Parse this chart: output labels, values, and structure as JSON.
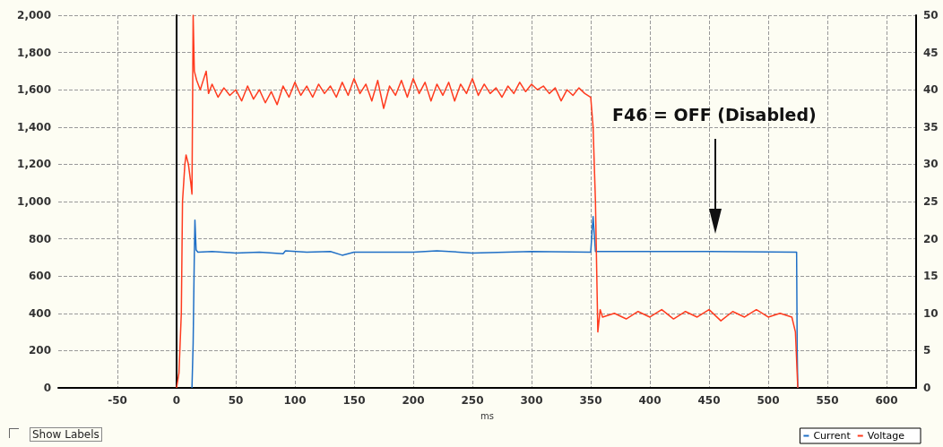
{
  "chart_data": {
    "type": "line",
    "xlabel": "ms",
    "xlim": [
      -100,
      625
    ],
    "xticks": [
      -50,
      0,
      50,
      100,
      150,
      200,
      250,
      300,
      350,
      400,
      450,
      500,
      550,
      600
    ],
    "ylim": [
      0,
      2000
    ],
    "yticks": [
      0,
      {
        "value": 200,
        "label": "200"
      },
      {
        "value": 400,
        "label": "400"
      },
      {
        "value": 600,
        "label": "600"
      },
      {
        "value": 800,
        "label": "800"
      },
      {
        "value": 1000,
        "label": "1,000"
      },
      {
        "value": 1200,
        "label": "1,200"
      },
      {
        "value": 1400,
        "label": "1,400"
      },
      {
        "value": 1600,
        "label": "1,600"
      },
      {
        "value": 1800,
        "label": "1,800"
      },
      {
        "value": 2000,
        "label": "2,000"
      }
    ],
    "y2lim": [
      0,
      50
    ],
    "y2ticks": [
      0,
      5,
      10,
      15,
      20,
      25,
      30,
      35,
      40,
      45,
      50
    ],
    "grid": true,
    "legend": "bottom right",
    "marker": "none",
    "line_style": "solid",
    "annotations": [
      "F46 = OFF (Disabled)",
      "Show Labels"
    ],
    "series": [
      {
        "name": "Current",
        "color": "#1f6fc6",
        "axis": "y2",
        "x": [
          13,
          14,
          15,
          15.5,
          16.5,
          18,
          30,
          50,
          70,
          90,
          92,
          110,
          130,
          140,
          150,
          200,
          220,
          250,
          300,
          350,
          352,
          354,
          360,
          450,
          524,
          524.5,
          525
        ],
        "values": [
          0,
          6,
          18,
          22.5,
          18.5,
          18.2,
          18.3,
          18.1,
          18.2,
          18.0,
          18.4,
          18.2,
          18.3,
          17.8,
          18.2,
          18.2,
          18.4,
          18.1,
          18.3,
          18.2,
          23,
          18.3,
          18.3,
          18.3,
          18.2,
          5,
          0
        ]
      },
      {
        "name": "Voltage",
        "color": "#ff3b1f",
        "x": [
          0,
          2,
          4,
          5,
          7,
          8,
          10,
          12,
          13,
          14,
          15,
          17,
          20,
          22,
          25,
          27,
          30,
          35,
          40,
          45,
          50,
          55,
          60,
          65,
          70,
          75,
          80,
          85,
          90,
          95,
          100,
          105,
          110,
          115,
          120,
          125,
          130,
          135,
          140,
          145,
          150,
          155,
          160,
          165,
          170,
          175,
          180,
          185,
          190,
          195,
          200,
          205,
          210,
          215,
          220,
          225,
          230,
          235,
          240,
          245,
          250,
          255,
          260,
          265,
          270,
          275,
          280,
          285,
          290,
          295,
          300,
          305,
          310,
          315,
          320,
          325,
          330,
          335,
          340,
          345,
          350,
          352,
          354,
          356,
          358,
          360,
          370,
          380,
          390,
          400,
          410,
          420,
          430,
          440,
          450,
          460,
          470,
          480,
          490,
          500,
          510,
          520,
          523,
          525
        ],
        "values": [
          0,
          80,
          400,
          1000,
          1200,
          1250,
          1200,
          1100,
          1040,
          2000,
          1700,
          1650,
          1600,
          1640,
          1700,
          1580,
          1630,
          1560,
          1610,
          1570,
          1600,
          1540,
          1620,
          1550,
          1600,
          1530,
          1590,
          1520,
          1620,
          1560,
          1640,
          1570,
          1620,
          1560,
          1630,
          1580,
          1620,
          1560,
          1640,
          1570,
          1660,
          1580,
          1630,
          1540,
          1650,
          1500,
          1620,
          1570,
          1650,
          1560,
          1660,
          1580,
          1640,
          1540,
          1630,
          1570,
          1640,
          1540,
          1630,
          1580,
          1660,
          1570,
          1630,
          1580,
          1610,
          1560,
          1620,
          1580,
          1640,
          1590,
          1630,
          1600,
          1620,
          1580,
          1610,
          1540,
          1600,
          1570,
          1610,
          1580,
          1560,
          1400,
          1000,
          300,
          420,
          380,
          400,
          370,
          410,
          380,
          420,
          370,
          410,
          380,
          420,
          360,
          410,
          380,
          420,
          380,
          400,
          380,
          300,
          0
        ]
      }
    ]
  }
}
